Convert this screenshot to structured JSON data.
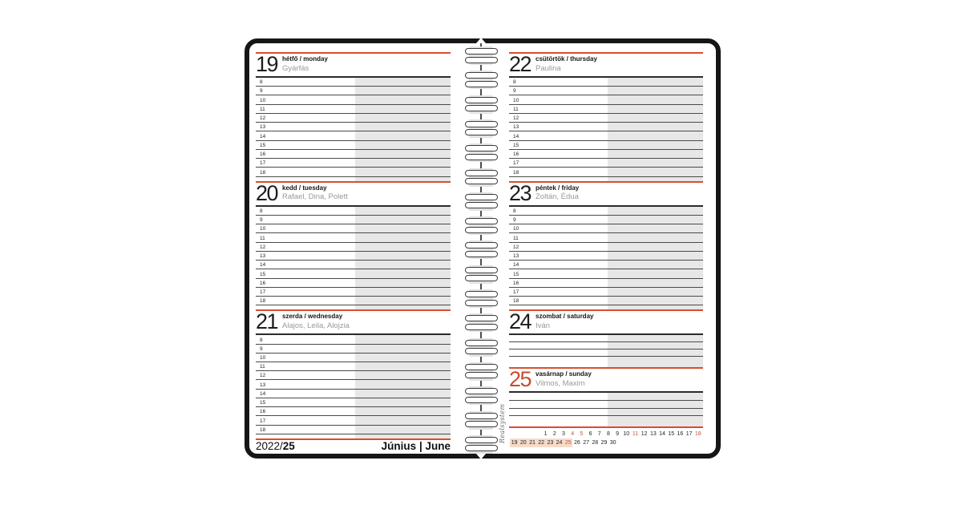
{
  "planner": {
    "brand_vertical_text": "Realsystem",
    "footer": {
      "year_prefix": "2022/",
      "week_number": "25",
      "month_hu": "Június",
      "divider": "|",
      "month_en": "June"
    },
    "hours": [
      "8",
      "9",
      "10",
      "11",
      "12",
      "13",
      "14",
      "15",
      "16",
      "17",
      "18"
    ],
    "left_days": [
      {
        "date": "19",
        "day_hu": "hétfő",
        "day_en": "monday",
        "namedays": "Gyárfás",
        "kind": "weekday",
        "red": false
      },
      {
        "date": "20",
        "day_hu": "kedd",
        "day_en": "tuesday",
        "namedays": "Rafael, Dina, Polett",
        "kind": "weekday",
        "red": false
      },
      {
        "date": "21",
        "day_hu": "szerda",
        "day_en": "wednesday",
        "namedays": "Alajos, Leila, Alojzia",
        "kind": "weekday",
        "red": false
      }
    ],
    "right_days": [
      {
        "date": "22",
        "day_hu": "csütörtök",
        "day_en": "thursday",
        "namedays": "Paulina",
        "kind": "weekday",
        "red": false
      },
      {
        "date": "23",
        "day_hu": "péntek",
        "day_en": "friday",
        "namedays": "Zoltán, Édua",
        "kind": "weekday",
        "red": false
      },
      {
        "date": "24",
        "day_hu": "szombat",
        "day_en": "saturday",
        "namedays": "Iván",
        "kind": "weekend",
        "red": false
      },
      {
        "date": "25",
        "day_hu": "vasárnap",
        "day_en": "sunday",
        "namedays": "Vilmos, Maxim",
        "kind": "weekend",
        "red": true
      }
    ],
    "mini_calendar": {
      "row1": [
        "1",
        "2",
        "3",
        "4",
        "5",
        "6",
        "7",
        "8",
        "9",
        "10",
        "11",
        "12",
        "13",
        "14",
        "15",
        "16",
        "17",
        "18"
      ],
      "row2": [
        "19",
        "20",
        "21",
        "22",
        "23",
        "24",
        "25",
        "26",
        "27",
        "28",
        "29",
        "30"
      ],
      "red_days": [
        "4",
        "5",
        "11",
        "18",
        "25"
      ],
      "highlighted_days": [
        "19",
        "20",
        "21",
        "22",
        "23",
        "24",
        "25"
      ]
    },
    "colors": {
      "rule_red": "#d94e2d",
      "day_red": "#cb4a31",
      "minical_red": "#c4543e",
      "peach": "#f6dcc8",
      "shade": "#e7e7e7",
      "cover_black": "#161616"
    }
  }
}
